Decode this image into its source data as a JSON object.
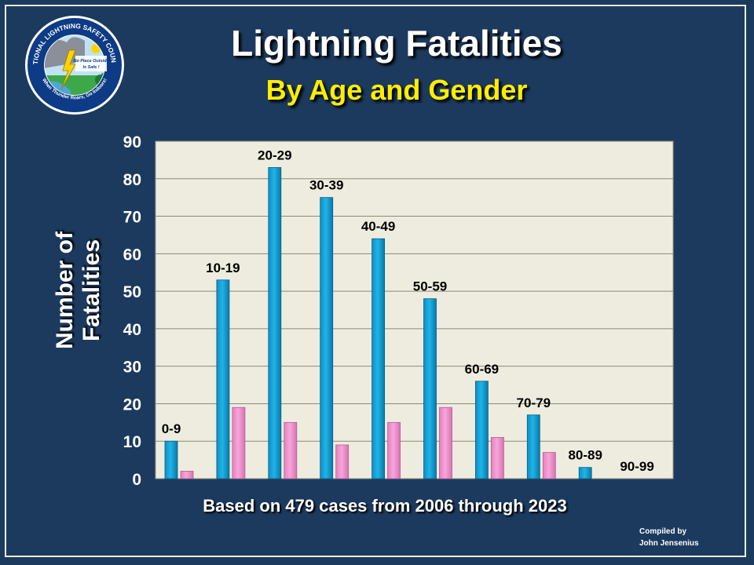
{
  "header": {
    "title": "Lightning Fatalities",
    "subtitle": "By Age and Gender"
  },
  "logo": {
    "ring_text_top": "NATIONAL LIGHTNING SAFETY COUNCIL",
    "ring_text_bottom": "When Thunder Roars, Go Indoors!",
    "center_line1": "No Place Outside",
    "center_line2": "Is Safe !"
  },
  "caption": "Based on 479 cases from 2006 through 2023",
  "credit": {
    "line1": "Compiled by",
    "line2": "John Jensenius"
  },
  "colors": {
    "background": "#1c3a5e",
    "plot_area": "#eeecde",
    "male": "#1fb4e8",
    "female": "#f7a6d9",
    "subtitle": "#ffee00"
  },
  "chart_data": {
    "type": "bar",
    "ylabel": "Number of Fatalities",
    "xlabel": "",
    "ylim": [
      0,
      90
    ],
    "yticks": [
      0,
      10,
      20,
      30,
      40,
      50,
      60,
      70,
      80,
      90
    ],
    "grid": true,
    "legend": "none",
    "categories": [
      "0-9",
      "10-19",
      "20-29",
      "30-39",
      "40-49",
      "50-59",
      "60-69",
      "70-79",
      "80-89",
      "90-99"
    ],
    "series": [
      {
        "values": [
          10,
          53,
          83,
          75,
          64,
          48,
          26,
          17,
          3,
          0
        ],
        "color": "#1fb4e8"
      },
      {
        "values": [
          2,
          19,
          15,
          9,
          15,
          19,
          11,
          7,
          0,
          0
        ],
        "color": "#f7a6d9"
      }
    ]
  }
}
